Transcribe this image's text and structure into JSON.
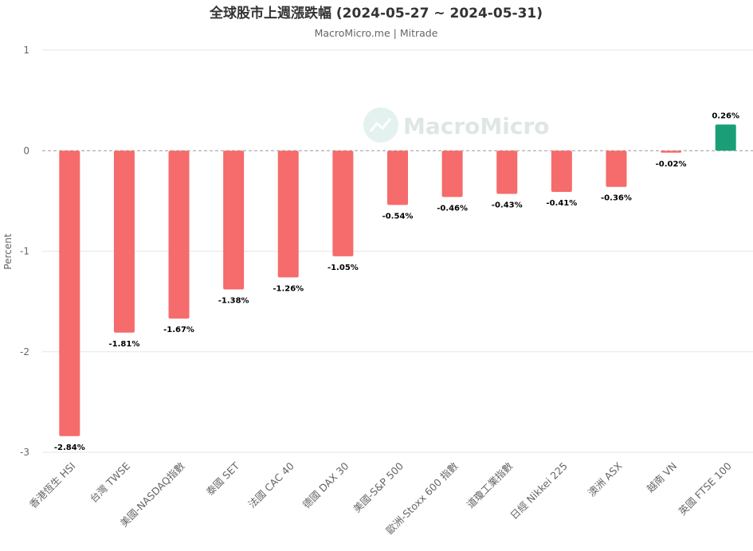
{
  "chart_data": {
    "type": "bar",
    "title": "全球股市上週漲跌幅 (2024-05-27 ~ 2024-05-31)",
    "subtitle": "MacroMicro.me | Mitrade",
    "watermark": "MacroMicro",
    "xlabel": "",
    "ylabel": "Percent",
    "ylim": [
      -3,
      1
    ],
    "yticks": [
      1,
      0,
      -1,
      -2,
      -3
    ],
    "grid": true,
    "categories": [
      "香港恆生 HSI",
      "台灣 TWSE",
      "美國-NASDAQ指數",
      "泰國 SET",
      "法國 CAC 40",
      "德國 DAX 30",
      "美國-S&P 500",
      "歐洲-Stoxx 600 指數",
      "道瓊工業指數",
      "日經 Nikkei 225",
      "澳洲 ASX",
      "越南 VN",
      "英國 FTSE 100"
    ],
    "values": [
      -2.84,
      -1.81,
      -1.67,
      -1.38,
      -1.26,
      -1.05,
      -0.54,
      -0.46,
      -0.43,
      -0.41,
      -0.36,
      -0.02,
      0.26
    ],
    "data_labels": [
      "-2.84%",
      "-1.81%",
      "-1.67%",
      "-1.38%",
      "-1.26%",
      "-1.05%",
      "-0.54%",
      "-0.46%",
      "-0.43%",
      "-0.41%",
      "-0.36%",
      "-0.02%",
      "0.26%"
    ],
    "colors": {
      "negative": "#f66b6b",
      "positive": "#1b9e77"
    }
  }
}
